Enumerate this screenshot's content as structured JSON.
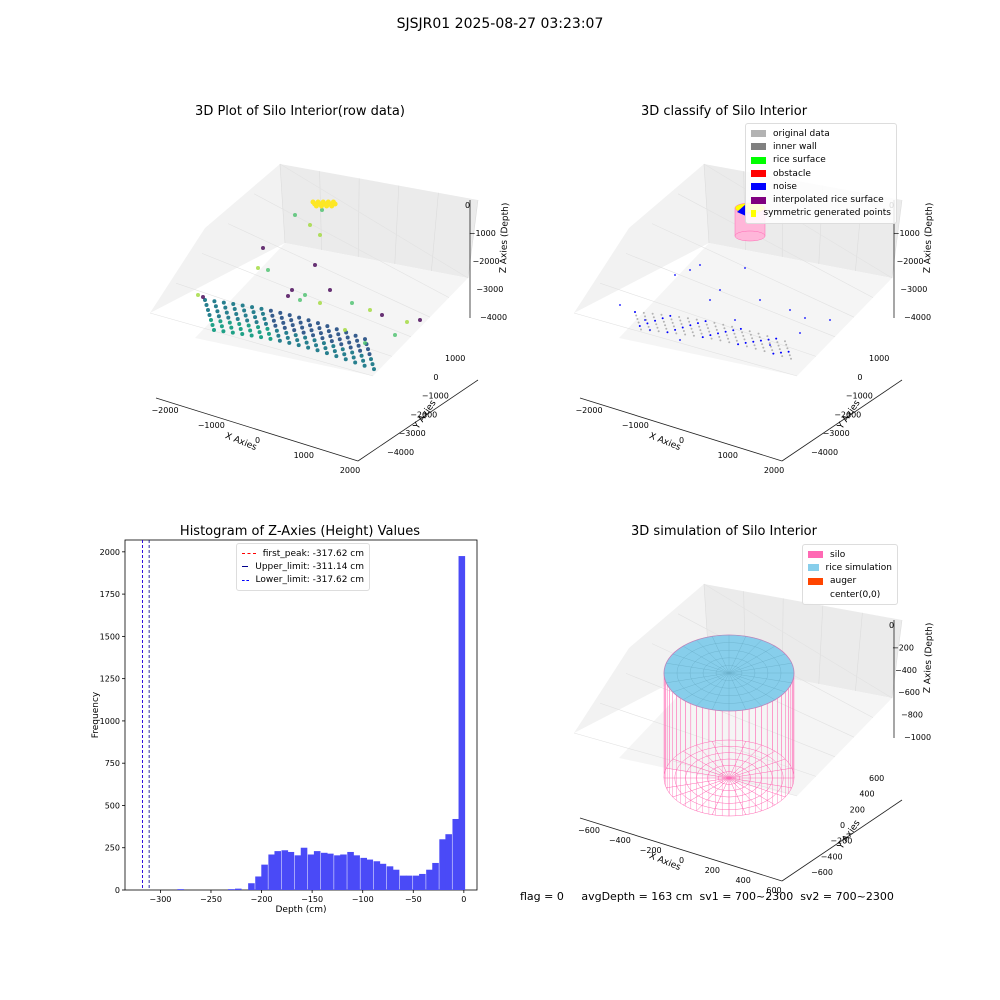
{
  "suptitle": "SJSJR01 2025-08-27 03:23:07",
  "footer": "flag = 0     avgDepth = 163 cm  sv1 = 700~2300  sv2 = 700~2300",
  "chart_data": [
    {
      "type": "scatter",
      "title": "3D Plot of Silo Interior(row data)",
      "xlabel": "X Axies",
      "ylabel": "Y Axies",
      "zlabel": "Z Axies (Depth)",
      "x_ticks": [
        "−2000",
        "−1000",
        "0",
        "1000",
        "2000"
      ],
      "y_ticks": [
        "1000",
        "0",
        "−1000",
        "−2000",
        "−3000",
        "−4000"
      ],
      "z_ticks": [
        "0",
        "−1000",
        "−2000",
        "−3000",
        "−4000"
      ],
      "colormap": "viridis"
    },
    {
      "type": "scatter",
      "title": "3D classify of Silo Interior",
      "xlabel": "X Axies",
      "ylabel": "Y Axies",
      "zlabel": "Z Axies (Depth)",
      "x_ticks": [
        "−2000",
        "−1000",
        "0",
        "1000",
        "2000"
      ],
      "y_ticks": [
        "1000",
        "0",
        "−1000",
        "−2000",
        "−3000",
        "−4000"
      ],
      "z_ticks": [
        "0",
        "−1000",
        "−2000",
        "−3000",
        "−4000"
      ],
      "legend": [
        {
          "label": "original data",
          "color": "#b3b3b3"
        },
        {
          "label": "inner wall",
          "color": "#808080"
        },
        {
          "label": "rice surface",
          "color": "#00ff00"
        },
        {
          "label": "obstacle",
          "color": "#ff0000"
        },
        {
          "label": "noise",
          "color": "#0000ff"
        },
        {
          "label": "interpolated rice surface",
          "color": "#800080"
        },
        {
          "label": "symmetric generated points",
          "color": "#ffff00"
        }
      ]
    },
    {
      "type": "bar",
      "title": "Histogram of Z-Axies (Height) Values",
      "xlabel": "Depth (cm)",
      "ylabel": "Frequency",
      "xlim": [
        -335,
        13
      ],
      "ylim": [
        0,
        2070
      ],
      "x_ticks": [
        -300,
        -250,
        -200,
        -150,
        -100,
        -50,
        0
      ],
      "y_ticks": [
        0,
        250,
        500,
        750,
        1000,
        1250,
        1500,
        1750,
        2000
      ],
      "bin_width": 6.5,
      "bins": [
        {
          "x": -280,
          "v": 5
        },
        {
          "x": -230,
          "v": 5
        },
        {
          "x": -223,
          "v": 8
        },
        {
          "x": -210,
          "v": 40
        },
        {
          "x": -203,
          "v": 80
        },
        {
          "x": -197,
          "v": 150
        },
        {
          "x": -190,
          "v": 210
        },
        {
          "x": -184,
          "v": 230
        },
        {
          "x": -177,
          "v": 235
        },
        {
          "x": -171,
          "v": 225
        },
        {
          "x": -164,
          "v": 205
        },
        {
          "x": -158,
          "v": 250
        },
        {
          "x": -151,
          "v": 210
        },
        {
          "x": -145,
          "v": 230
        },
        {
          "x": -138,
          "v": 220
        },
        {
          "x": -132,
          "v": 215
        },
        {
          "x": -125,
          "v": 205
        },
        {
          "x": -119,
          "v": 210
        },
        {
          "x": -112,
          "v": 225
        },
        {
          "x": -106,
          "v": 205
        },
        {
          "x": -99,
          "v": 190
        },
        {
          "x": -93,
          "v": 180
        },
        {
          "x": -86,
          "v": 170
        },
        {
          "x": -80,
          "v": 155
        },
        {
          "x": -73,
          "v": 140
        },
        {
          "x": -67,
          "v": 120
        },
        {
          "x": -60,
          "v": 85
        },
        {
          "x": -54,
          "v": 85
        },
        {
          "x": -47,
          "v": 85
        },
        {
          "x": -41,
          "v": 95
        },
        {
          "x": -34,
          "v": 120
        },
        {
          "x": -28,
          "v": 160
        },
        {
          "x": -21,
          "v": 300
        },
        {
          "x": -15,
          "v": 330
        },
        {
          "x": -8,
          "v": 420
        },
        {
          "x": -2,
          "v": 1975
        }
      ],
      "bar_color": "#4a4af7",
      "vlines": [
        {
          "label": "first_peak: -317.62 cm",
          "x": -317.62,
          "color": "#ff0000"
        },
        {
          "label": "Upper_limit: -311.14 cm",
          "x": -311.14,
          "color": "#00008b"
        },
        {
          "label": "Lower_limit: -317.62 cm",
          "x": -317.62,
          "color": "#0000ff"
        }
      ]
    },
    {
      "type": "other",
      "title": "3D simulation of Silo Interior",
      "xlabel": "X Axies",
      "ylabel": "Y Axies",
      "zlabel": "Z Axies (Depth)",
      "x_ticks": [
        "−600",
        "−400",
        "−200",
        "0",
        "200",
        "400",
        "600"
      ],
      "y_ticks": [
        "600",
        "400",
        "200",
        "0",
        "−200",
        "−400",
        "−600"
      ],
      "z_ticks": [
        "0",
        "−200",
        "−400",
        "−600",
        "−800",
        "−1000"
      ],
      "legend": [
        {
          "label": "silo",
          "color": "#ff69b4"
        },
        {
          "label": "rice simulation",
          "color": "#87ceeb"
        },
        {
          "label": "auger",
          "color": "#ff4500"
        },
        {
          "label": "center(0,0)",
          "color": "#ffffff"
        }
      ]
    }
  ]
}
